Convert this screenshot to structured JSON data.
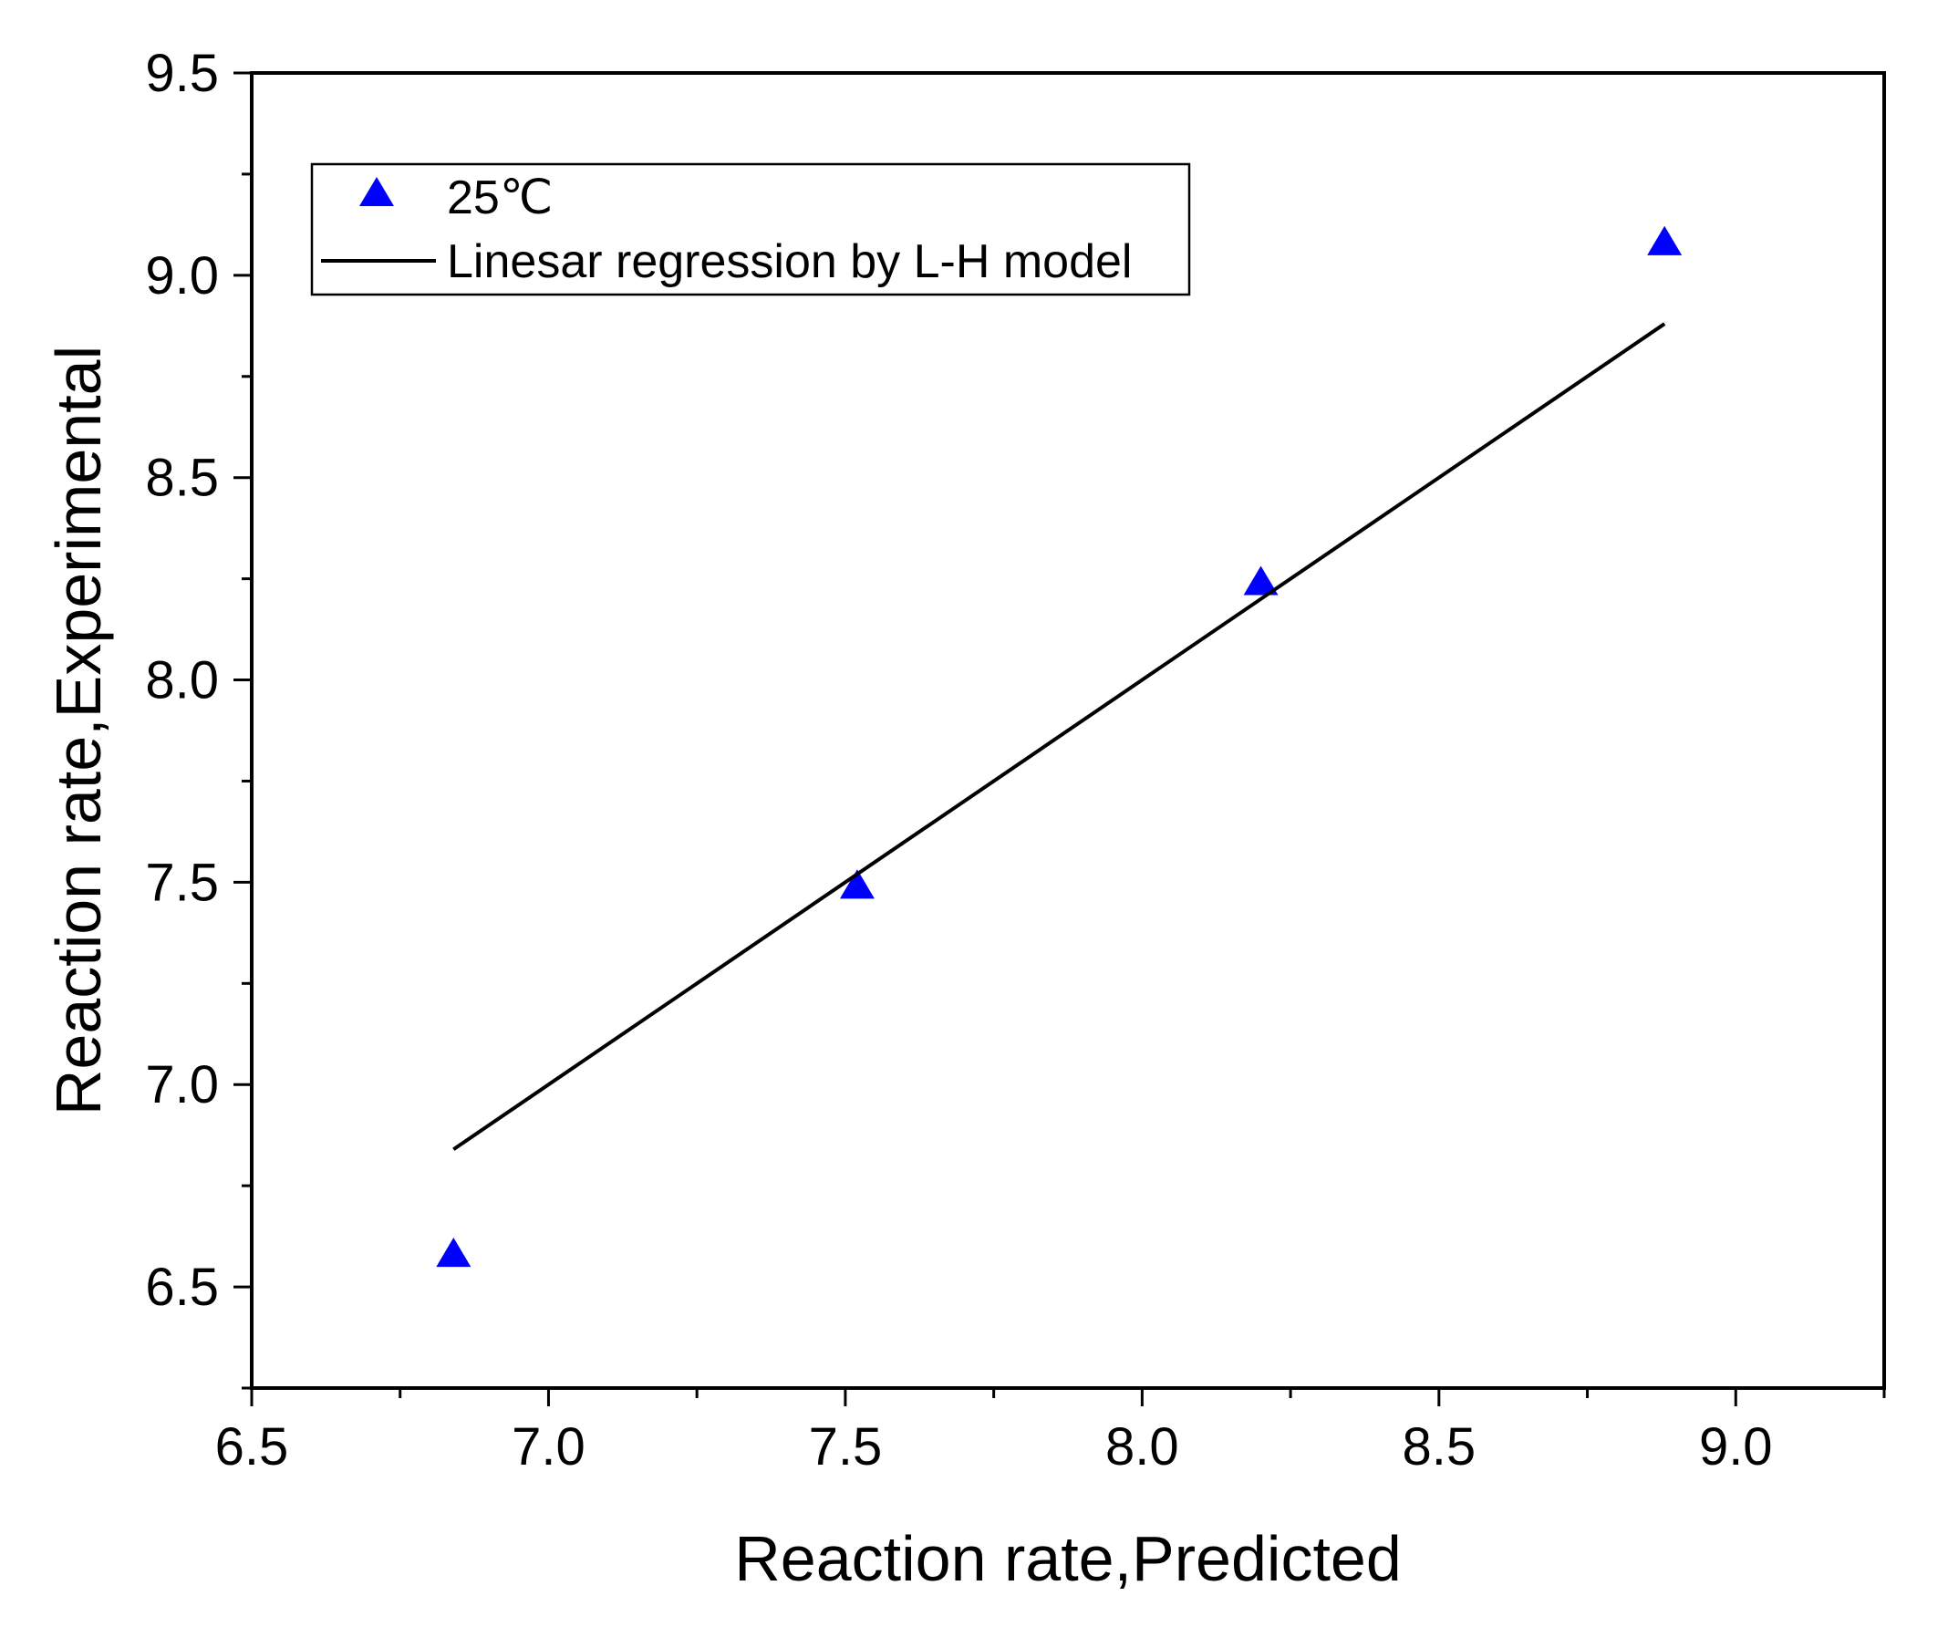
{
  "chart_data": {
    "type": "scatter",
    "title": "",
    "xlabel": "Reaction rate,Predicted",
    "ylabel": "Reaction rate,Experimental",
    "xlim": [
      6.5,
      9.25
    ],
    "ylim": [
      6.25,
      9.5
    ],
    "xticks": [
      6.5,
      7.0,
      7.5,
      8.0,
      8.5,
      9.0
    ],
    "yticks": [
      6.5,
      7.0,
      7.5,
      8.0,
      8.5,
      9.0,
      9.5
    ],
    "xtick_labels": [
      "6.5",
      "7.0",
      "7.5",
      "8.0",
      "8.5",
      "9.0"
    ],
    "ytick_labels": [
      "6.5",
      "7.0",
      "7.5",
      "8.0",
      "8.5",
      "9.0",
      "9.5"
    ],
    "grid": false,
    "legend_position": "top-left",
    "series": [
      {
        "name": "25℃",
        "kind": "scatter",
        "marker": "triangle",
        "color": "#0000ff",
        "x": [
          6.84,
          7.52,
          8.2,
          8.88
        ],
        "y": [
          6.58,
          7.49,
          8.24,
          9.08
        ]
      },
      {
        "name": "Linesar regression by L-H model",
        "kind": "line",
        "color": "#000000",
        "x": [
          6.84,
          8.88
        ],
        "y": [
          6.84,
          8.88
        ]
      }
    ]
  }
}
